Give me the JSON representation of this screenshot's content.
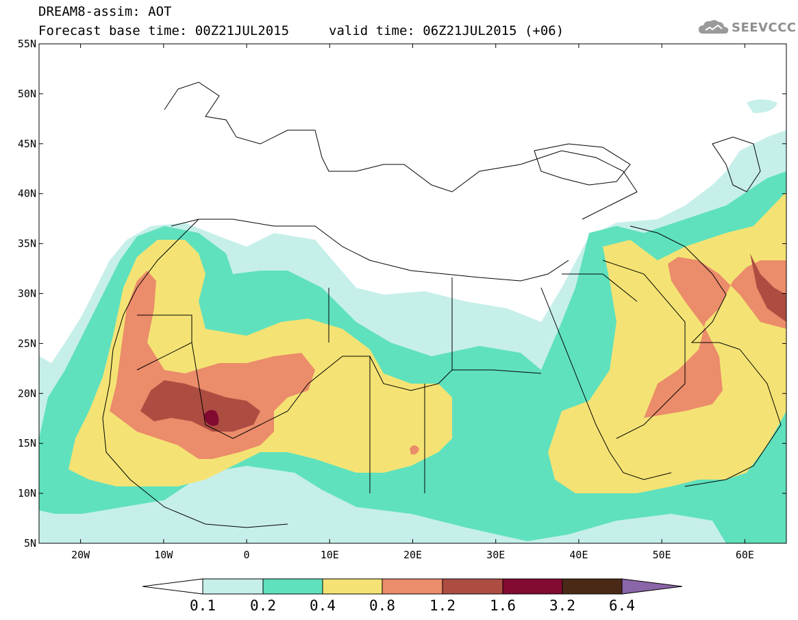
{
  "header": {
    "title": "DREAM8-assim: AOT",
    "base_time": "Forecast base time: 00Z21JUL2015",
    "valid_time": "valid time: 06Z21JUL2015 (+06)",
    "logo_text": "SEEVCCC"
  },
  "map": {
    "lat_labels": [
      "55N",
      "50N",
      "45N",
      "40N",
      "35N",
      "30N",
      "25N",
      "20N",
      "15N",
      "10N",
      "5N"
    ],
    "lon_labels": [
      "20W",
      "10W",
      "0",
      "10E",
      "20E",
      "30E",
      "40E",
      "50E",
      "60E"
    ],
    "lon_range": [
      -25,
      65
    ],
    "lat_range": [
      5,
      55
    ]
  },
  "colorbar": {
    "labels": [
      "0.1",
      "0.2",
      "0.4",
      "0.8",
      "1.2",
      "1.6",
      "3.2",
      "6.4"
    ],
    "colors": [
      "#ffffff",
      "#c6efea",
      "#5fe1bd",
      "#f4e374",
      "#eb8c6a",
      "#ad4d42",
      "#820a30",
      "#4a2a17",
      "#8a65a8"
    ]
  }
}
